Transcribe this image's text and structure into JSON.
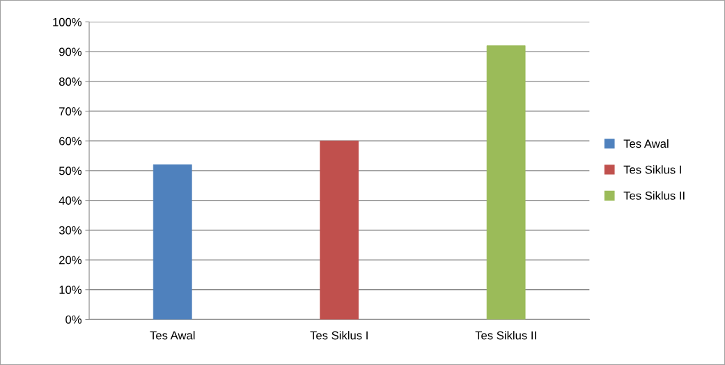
{
  "chart_data": {
    "type": "bar",
    "categories": [
      "Tes Awal",
      "Tes Siklus I",
      "Tes Siklus II"
    ],
    "series": [
      {
        "name": "Tes Awal",
        "color": "#4f81bd",
        "values": [
          52,
          null,
          null
        ]
      },
      {
        "name": "Tes Siklus I",
        "color": "#c0504d",
        "values": [
          null,
          60,
          null
        ]
      },
      {
        "name": "Tes Siklus II",
        "color": "#9bbb59",
        "values": [
          null,
          null,
          92
        ]
      }
    ],
    "ylim": [
      0,
      100
    ],
    "yticks": [
      {
        "value": 0,
        "label": "0%"
      },
      {
        "value": 10,
        "label": "10%"
      },
      {
        "value": 20,
        "label": "20%"
      },
      {
        "value": 30,
        "label": "30%"
      },
      {
        "value": 40,
        "label": "40%"
      },
      {
        "value": 50,
        "label": "50%"
      },
      {
        "value": 60,
        "label": "60%"
      },
      {
        "value": 70,
        "label": "70%"
      },
      {
        "value": 80,
        "label": "80%"
      },
      {
        "value": 90,
        "label": "90%"
      },
      {
        "value": 100,
        "label": "100%"
      }
    ],
    "grid": "y",
    "legend": "right"
  }
}
